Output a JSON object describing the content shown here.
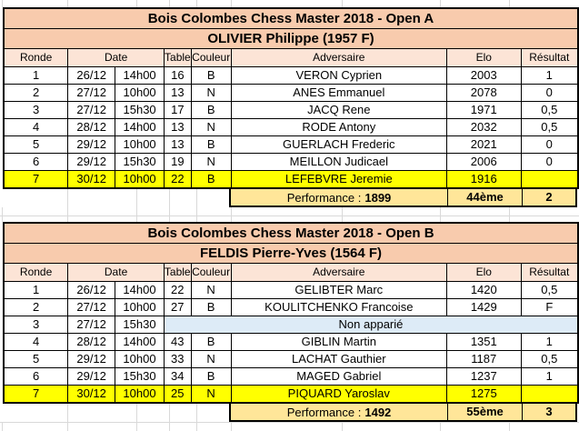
{
  "colors": {
    "title_bg": "#F8CBAD",
    "header_bg": "#FCE4D6",
    "highlight_bg": "#FFFF00",
    "performance_bg": "#FFE699",
    "unpaired_bg": "#DDEBF7",
    "border": "#000000",
    "grid": "#D9D9D9"
  },
  "tables": [
    {
      "title": "Bois Colombes Chess Master 2018 - Open A",
      "player": "OLIVIER Philippe (1957 F)",
      "headers": {
        "ronde": "Ronde",
        "date": "Date",
        "table": "Table",
        "couleur": "Couleur",
        "adversaire": "Adversaire",
        "elo": "Elo",
        "resultat": "Résultat"
      },
      "rows": [
        {
          "ronde": "1",
          "date": "26/12",
          "time": "14h00",
          "table": "16",
          "couleur": "B",
          "adversaire": "VERON Cyprien",
          "elo": "2003",
          "resultat": "1",
          "highlight": false
        },
        {
          "ronde": "2",
          "date": "27/12",
          "time": "10h00",
          "table": "13",
          "couleur": "N",
          "adversaire": "ANES Emmanuel",
          "elo": "2078",
          "resultat": "0",
          "highlight": false
        },
        {
          "ronde": "3",
          "date": "27/12",
          "time": "15h30",
          "table": "17",
          "couleur": "B",
          "adversaire": "JACQ Rene",
          "elo": "1971",
          "resultat": "0,5",
          "highlight": false
        },
        {
          "ronde": "4",
          "date": "28/12",
          "time": "14h00",
          "table": "13",
          "couleur": "N",
          "adversaire": "RODE Antony",
          "elo": "2032",
          "resultat": "0,5",
          "highlight": false
        },
        {
          "ronde": "5",
          "date": "29/12",
          "time": "10h00",
          "table": "13",
          "couleur": "B",
          "adversaire": "GUERLACH Frederic",
          "elo": "2021",
          "resultat": "0",
          "highlight": false
        },
        {
          "ronde": "6",
          "date": "29/12",
          "time": "15h30",
          "table": "19",
          "couleur": "N",
          "adversaire": "MEILLON Judicael",
          "elo": "2006",
          "resultat": "0",
          "highlight": false
        },
        {
          "ronde": "7",
          "date": "30/12",
          "time": "10h00",
          "table": "22",
          "couleur": "B",
          "adversaire": "LEFEBVRE Jeremie",
          "elo": "1916",
          "resultat": "",
          "highlight": true
        }
      ],
      "performance": {
        "label": "Performance :",
        "value": "1899",
        "rank": "44ème",
        "points": "2"
      }
    },
    {
      "title": "Bois Colombes Chess Master 2018 - Open B",
      "player": "FELDIS Pierre-Yves (1564 F)",
      "headers": {
        "ronde": "Ronde",
        "date": "Date",
        "table": "Table",
        "couleur": "Couleur",
        "adversaire": "Adversaire",
        "elo": "Elo",
        "resultat": "Résultat"
      },
      "rows": [
        {
          "ronde": "1",
          "date": "26/12",
          "time": "14h00",
          "table": "22",
          "couleur": "N",
          "adversaire": "GELIBTER Marc",
          "elo": "1420",
          "resultat": "0,5",
          "highlight": false
        },
        {
          "ronde": "2",
          "date": "27/12",
          "time": "10h00",
          "table": "27",
          "couleur": "B",
          "adversaire": "KOULITCHENKO Francoise",
          "elo": "1429",
          "resultat": "F",
          "highlight": false
        },
        {
          "ronde": "3",
          "date": "27/12",
          "time": "15h30",
          "unpaired": "Non apparié",
          "highlight": false
        },
        {
          "ronde": "4",
          "date": "28/12",
          "time": "14h00",
          "table": "43",
          "couleur": "B",
          "adversaire": "GIBLIN Martin",
          "elo": "1351",
          "resultat": "1",
          "highlight": false
        },
        {
          "ronde": "5",
          "date": "29/12",
          "time": "10h00",
          "table": "33",
          "couleur": "N",
          "adversaire": "LACHAT Gauthier",
          "elo": "1187",
          "resultat": "0,5",
          "highlight": false
        },
        {
          "ronde": "6",
          "date": "29/12",
          "time": "15h30",
          "table": "34",
          "couleur": "B",
          "adversaire": "MAGED Gabriel",
          "elo": "1237",
          "resultat": "1",
          "highlight": false
        },
        {
          "ronde": "7",
          "date": "30/12",
          "time": "10h00",
          "table": "25",
          "couleur": "N",
          "adversaire": "PIQUARD Yaroslav",
          "elo": "1275",
          "resultat": "",
          "highlight": true
        }
      ],
      "performance": {
        "label": "Performance :",
        "value": "1492",
        "rank": "55ème",
        "points": "3"
      }
    }
  ]
}
